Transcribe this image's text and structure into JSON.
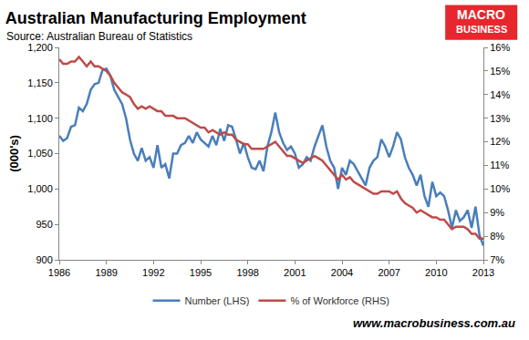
{
  "chart_data": {
    "type": "line",
    "title": "Australian Manufacturing Employment",
    "subtitle": "Source: Australian Bureau of Statistics",
    "y_label": "(000's)",
    "logo": [
      "MACRO",
      "BUSINESS"
    ],
    "footer": "www.macrobusiness.com.au",
    "x": [
      1986,
      1986.25,
      1986.5,
      1986.75,
      1987,
      1987.25,
      1987.5,
      1987.75,
      1988,
      1988.25,
      1988.5,
      1988.75,
      1989,
      1989.25,
      1989.5,
      1989.75,
      1990,
      1990.25,
      1990.5,
      1990.75,
      1991,
      1991.25,
      1991.5,
      1991.75,
      1992,
      1992.25,
      1992.5,
      1992.75,
      1993,
      1993.25,
      1993.5,
      1993.75,
      1994,
      1994.25,
      1994.5,
      1994.75,
      1995,
      1995.25,
      1995.5,
      1995.75,
      1996,
      1996.25,
      1996.5,
      1996.75,
      1997,
      1997.25,
      1997.5,
      1997.75,
      1998,
      1998.25,
      1998.5,
      1998.75,
      1999,
      1999.25,
      1999.5,
      1999.75,
      2000,
      2000.25,
      2000.5,
      2000.75,
      2001,
      2001.25,
      2001.5,
      2001.75,
      2002,
      2002.25,
      2002.5,
      2002.75,
      2003,
      2003.25,
      2003.5,
      2003.75,
      2004,
      2004.25,
      2004.5,
      2004.75,
      2005,
      2005.25,
      2005.5,
      2005.75,
      2006,
      2006.25,
      2006.5,
      2006.75,
      2007,
      2007.25,
      2007.5,
      2007.75,
      2008,
      2008.25,
      2008.5,
      2008.75,
      2009,
      2009.25,
      2009.5,
      2009.75,
      2010,
      2010.25,
      2010.5,
      2010.75,
      2011,
      2011.25,
      2011.5,
      2011.75,
      2012,
      2012.25,
      2012.5,
      2012.75,
      2013
    ],
    "series": [
      {
        "name": "Number (LHS)",
        "color": "#4a7ebb",
        "axis": "y",
        "values": [
          1075,
          1068,
          1072,
          1088,
          1090,
          1115,
          1110,
          1120,
          1140,
          1148,
          1150,
          1168,
          1170,
          1160,
          1140,
          1130,
          1120,
          1100,
          1070,
          1050,
          1040,
          1058,
          1040,
          1045,
          1030,
          1062,
          1030,
          1035,
          1015,
          1050,
          1050,
          1062,
          1065,
          1075,
          1065,
          1080,
          1070,
          1065,
          1060,
          1075,
          1062,
          1085,
          1068,
          1090,
          1088,
          1070,
          1050,
          1065,
          1045,
          1030,
          1028,
          1040,
          1025,
          1060,
          1080,
          1108,
          1080,
          1065,
          1055,
          1060,
          1050,
          1030,
          1035,
          1045,
          1040,
          1060,
          1075,
          1090,
          1060,
          1040,
          1030,
          1000,
          1030,
          1020,
          1040,
          1035,
          1025,
          1015,
          1005,
          1030,
          1040,
          1045,
          1070,
          1060,
          1045,
          1060,
          1080,
          1070,
          1045,
          1030,
          1020,
          1005,
          1020,
          990,
          975,
          1010,
          990,
          995,
          990,
          970,
          945,
          970,
          955,
          960,
          970,
          945,
          975,
          935,
          920
        ]
      },
      {
        "name": "% of Workforce (RHS)",
        "color": "#be4b48",
        "axis": "y2",
        "values": [
          15.5,
          15.3,
          15.3,
          15.4,
          15.4,
          15.6,
          15.4,
          15.2,
          15.4,
          15.2,
          15.2,
          15.1,
          15.0,
          14.8,
          14.5,
          14.3,
          14.1,
          14.0,
          13.9,
          13.6,
          13.4,
          13.5,
          13.4,
          13.5,
          13.4,
          13.3,
          13.3,
          13.1,
          13.1,
          13.1,
          13.0,
          13.0,
          13.0,
          12.9,
          12.8,
          12.7,
          12.6,
          12.6,
          12.4,
          12.5,
          12.4,
          12.3,
          12.4,
          12.3,
          12.3,
          12.1,
          12.0,
          11.9,
          11.9,
          11.7,
          11.7,
          11.7,
          11.7,
          11.8,
          11.9,
          12.0,
          11.8,
          11.6,
          11.4,
          11.4,
          11.3,
          11.2,
          11.1,
          11.2,
          11.3,
          11.4,
          11.3,
          11.2,
          11.0,
          10.8,
          10.6,
          10.4,
          10.6,
          10.4,
          10.5,
          10.3,
          10.2,
          10.1,
          10.0,
          9.9,
          9.8,
          9.8,
          9.9,
          9.9,
          9.9,
          9.8,
          9.9,
          9.6,
          9.4,
          9.3,
          9.2,
          9.0,
          9.1,
          9.0,
          8.9,
          8.8,
          8.8,
          8.7,
          8.7,
          8.5,
          8.3,
          8.4,
          8.4,
          8.4,
          8.3,
          8.1,
          8.1,
          7.9,
          7.9
        ]
      }
    ],
    "xlim": [
      1986,
      2013
    ],
    "xticks": [
      1986,
      1989,
      1992,
      1995,
      1998,
      2001,
      2004,
      2007,
      2010,
      2013
    ],
    "ylim": [
      900,
      1200
    ],
    "yticks": [
      900,
      950,
      {
        "value": 1000,
        "label": "1,000"
      },
      {
        "value": 1050,
        "label": "1,050"
      },
      {
        "value": 1100,
        "label": "1,100"
      },
      {
        "value": 1150,
        "label": "1,150"
      },
      {
        "value": 1200,
        "label": "1,200"
      }
    ],
    "y2lim": [
      7,
      16
    ],
    "y2ticks": [
      {
        "value": 7,
        "label": "7%"
      },
      {
        "value": 8,
        "label": "8%"
      },
      {
        "value": 9,
        "label": "9%"
      },
      {
        "value": 10,
        "label": "10%"
      },
      {
        "value": 11,
        "label": "11%"
      },
      {
        "value": 12,
        "label": "12%"
      },
      {
        "value": 13,
        "label": "13%"
      },
      {
        "value": 14,
        "label": "14%"
      },
      {
        "value": 15,
        "label": "15%"
      },
      {
        "value": 16,
        "label": "16%"
      }
    ],
    "grid": false,
    "legend": "bottom"
  }
}
